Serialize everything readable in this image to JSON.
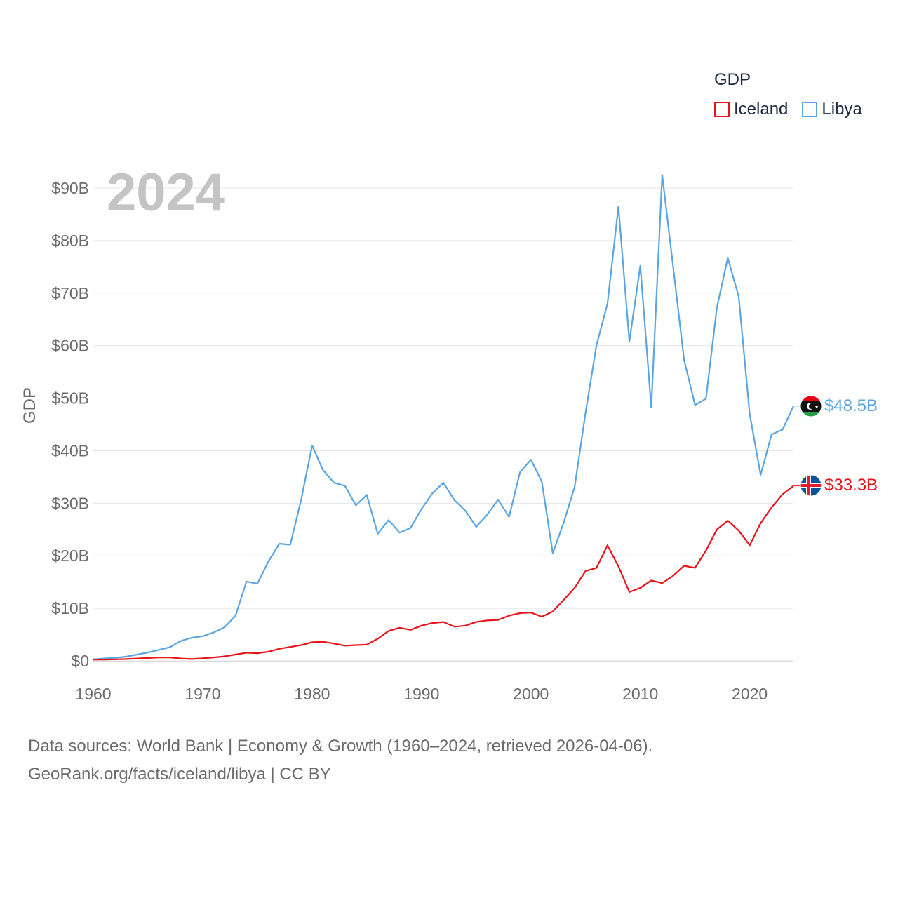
{
  "chart_data": {
    "type": "line",
    "title": "GDP",
    "year_label": "2024",
    "ylabel": "GDP",
    "xlabel": "",
    "xlim": [
      1960,
      2024
    ],
    "ylim": [
      0,
      95
    ],
    "y_ticks": [
      0,
      10,
      20,
      30,
      40,
      50,
      60,
      70,
      80,
      90
    ],
    "y_tick_labels": [
      "$0",
      "$10B",
      "$20B",
      "$30B",
      "$40B",
      "$50B",
      "$60B",
      "$70B",
      "$80B",
      "$90B"
    ],
    "x_ticks": [
      1960,
      1970,
      1980,
      1990,
      2000,
      2010,
      2020
    ],
    "x_tick_labels": [
      "1960",
      "1970",
      "1980",
      "1990",
      "2000",
      "2010",
      "2020"
    ],
    "legend_position": "top-right",
    "years": [
      1960,
      1961,
      1962,
      1963,
      1964,
      1965,
      1966,
      1967,
      1968,
      1969,
      1970,
      1971,
      1972,
      1973,
      1974,
      1975,
      1976,
      1977,
      1978,
      1979,
      1980,
      1981,
      1982,
      1983,
      1984,
      1985,
      1986,
      1987,
      1988,
      1989,
      1990,
      1991,
      1992,
      1993,
      1994,
      1995,
      1996,
      1997,
      1998,
      1999,
      2000,
      2001,
      2002,
      2003,
      2004,
      2005,
      2006,
      2007,
      2008,
      2009,
      2010,
      2011,
      2012,
      2013,
      2014,
      2015,
      2016,
      2017,
      2018,
      2019,
      2020,
      2021,
      2022,
      2023,
      2024
    ],
    "series": [
      {
        "name": "Iceland",
        "color": "#e8141c",
        "end_label": "$33.3B",
        "values": [
          0.25,
          0.25,
          0.3,
          0.35,
          0.45,
          0.55,
          0.65,
          0.65,
          0.45,
          0.35,
          0.5,
          0.65,
          0.85,
          1.2,
          1.55,
          1.45,
          1.75,
          2.3,
          2.65,
          3.0,
          3.55,
          3.65,
          3.3,
          2.9,
          3.0,
          3.1,
          4.2,
          5.7,
          6.3,
          5.9,
          6.7,
          7.2,
          7.4,
          6.5,
          6.7,
          7.4,
          7.7,
          7.8,
          8.6,
          9.1,
          9.2,
          8.4,
          9.4,
          11.6,
          13.9,
          17.1,
          17.7,
          22.0,
          18.0,
          13.1,
          13.9,
          15.3,
          14.8,
          16.2,
          18.1,
          17.7,
          21.0,
          25.0,
          26.7,
          24.8,
          22.0,
          26.2,
          29.2,
          31.7,
          33.3
        ]
      },
      {
        "name": "Libya",
        "color": "#5aa5e3",
        "end_label": "$48.5B",
        "values": [
          0.3,
          0.45,
          0.6,
          0.8,
          1.2,
          1.6,
          2.1,
          2.6,
          3.8,
          4.4,
          4.7,
          5.4,
          6.4,
          8.6,
          15.1,
          14.7,
          18.9,
          22.3,
          22.1,
          30.7,
          41.0,
          36.3,
          33.9,
          33.3,
          29.6,
          31.6,
          24.2,
          26.8,
          24.4,
          25.3,
          28.9,
          31.9,
          33.9,
          30.6,
          28.6,
          25.5,
          27.8,
          30.7,
          27.4,
          35.9,
          38.3,
          34.1,
          20.5,
          26.3,
          33.1,
          47.3,
          60.1,
          68.0,
          86.5,
          60.8,
          75.2,
          48.2,
          92.5,
          75.0,
          57.3,
          48.7,
          49.9,
          67.2,
          76.7,
          69.3,
          47.0,
          35.4,
          43.1,
          44.0,
          48.5
        ]
      }
    ]
  },
  "source_line1": "Data sources: World Bank | Economy & Growth (1960–2024, retrieved 2026-04-06).",
  "source_line2": "GeoRank.org/facts/iceland/libya | CC BY"
}
